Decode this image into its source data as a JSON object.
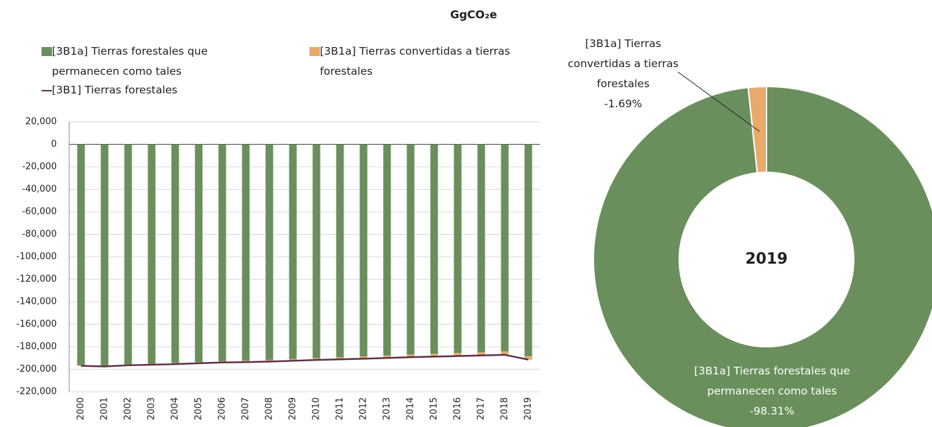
{
  "unit_label": "GgCO₂e",
  "chart_data": [
    {
      "type": "bar",
      "stacked": true,
      "grid": true,
      "categories": [
        "2000",
        "2001",
        "2002",
        "2003",
        "2004",
        "2005",
        "2006",
        "2007",
        "2008",
        "2009",
        "2010",
        "2011",
        "2012",
        "2013",
        "2014",
        "2015",
        "2016",
        "2017",
        "2018",
        "2019"
      ],
      "series": [
        {
          "name": "[3B1a] Tierras forestales que permanecen como tales",
          "color": "#6a8f5c",
          "values": [
            -196500,
            -196900,
            -195800,
            -195200,
            -194600,
            -193700,
            -192900,
            -192400,
            -191800,
            -191000,
            -190100,
            -189400,
            -188700,
            -187900,
            -187000,
            -186300,
            -185700,
            -185000,
            -184200,
            -188300
          ]
        },
        {
          "name": "[3B1a] Tierras convertidas a tierras forestales",
          "color": "#e8a96a",
          "values": [
            -500,
            -600,
            -700,
            -800,
            -900,
            -1000,
            -1100,
            -1300,
            -1400,
            -1500,
            -1700,
            -1800,
            -2000,
            -2100,
            -2300,
            -2500,
            -2600,
            -2800,
            -3000,
            -3200
          ]
        },
        {
          "name": "[3B1] Tierras forestales",
          "color": "#5c3048",
          "type": "line",
          "values": [
            -197000,
            -197500,
            -196500,
            -196000,
            -195500,
            -194700,
            -194000,
            -193700,
            -193200,
            -192500,
            -191800,
            -191200,
            -190700,
            -190000,
            -189300,
            -188800,
            -188300,
            -187800,
            -187200,
            -191500
          ]
        }
      ],
      "ylim": [
        -220000,
        20000
      ],
      "yticks": [
        {
          "value": -220000,
          "label": "-220,000"
        },
        {
          "value": -200000,
          "label": "-200,000"
        },
        {
          "value": -180000,
          "label": "-180,000"
        },
        {
          "value": -160000,
          "label": "-160,000"
        },
        {
          "value": -140000,
          "label": "-140,000"
        },
        {
          "value": -120000,
          "label": "-120,000"
        },
        {
          "value": -100000,
          "label": "-100,000"
        },
        {
          "value": -80000,
          "label": "-80,000"
        },
        {
          "value": -60000,
          "label": "-60,000"
        },
        {
          "value": -40000,
          "label": "-40,000"
        },
        {
          "value": -20000,
          "label": "-20,000"
        },
        0,
        {
          "value": 20000,
          "label": "20,000"
        }
      ]
    },
    {
      "type": "donut",
      "title": "2019",
      "categories": [
        "[3B1a] Tierras forestales que permanecen como tales",
        "[3B1a] Tierras convertidas a tierras forestales"
      ],
      "values": [
        -98.31,
        -1.69
      ],
      "value_labels": [
        "-98.31%",
        "-1.69%"
      ],
      "colors": [
        "#6a8f5c",
        "#e8a96a"
      ]
    }
  ]
}
